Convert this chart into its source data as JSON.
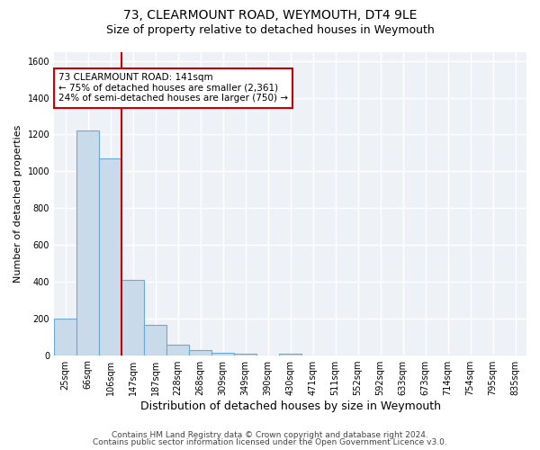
{
  "title": "73, CLEARMOUNT ROAD, WEYMOUTH, DT4 9LE",
  "subtitle": "Size of property relative to detached houses in Weymouth",
  "xlabel": "Distribution of detached houses by size in Weymouth",
  "ylabel": "Number of detached properties",
  "categories": [
    "25sqm",
    "66sqm",
    "106sqm",
    "147sqm",
    "187sqm",
    "228sqm",
    "268sqm",
    "309sqm",
    "349sqm",
    "390sqm",
    "430sqm",
    "471sqm",
    "511sqm",
    "552sqm",
    "592sqm",
    "633sqm",
    "673sqm",
    "714sqm",
    "754sqm",
    "795sqm",
    "835sqm"
  ],
  "values": [
    200,
    1220,
    1070,
    410,
    165,
    55,
    25,
    15,
    10,
    0,
    10,
    0,
    0,
    0,
    0,
    0,
    0,
    0,
    0,
    0,
    0
  ],
  "bar_color": "#c9daea",
  "bar_edge_color": "#6aaad4",
  "red_line_index": 2.5,
  "red_line_color": "#cc0000",
  "annotation_text": "73 CLEARMOUNT ROAD: 141sqm\n← 75% of detached houses are smaller (2,361)\n24% of semi-detached houses are larger (750) →",
  "annotation_box_color": "#ffffff",
  "annotation_box_edge_color": "#cc0000",
  "ylim": [
    0,
    1650
  ],
  "yticks": [
    0,
    200,
    400,
    600,
    800,
    1000,
    1200,
    1400,
    1600
  ],
  "background_color": "#eef2f7",
  "grid_color": "#ffffff",
  "footer1": "Contains HM Land Registry data © Crown copyright and database right 2024.",
  "footer2": "Contains public sector information licensed under the Open Government Licence v3.0.",
  "title_fontsize": 10,
  "subtitle_fontsize": 9,
  "xlabel_fontsize": 9,
  "ylabel_fontsize": 8,
  "tick_fontsize": 7,
  "annotation_fontsize": 7.5,
  "footer_fontsize": 6.5
}
